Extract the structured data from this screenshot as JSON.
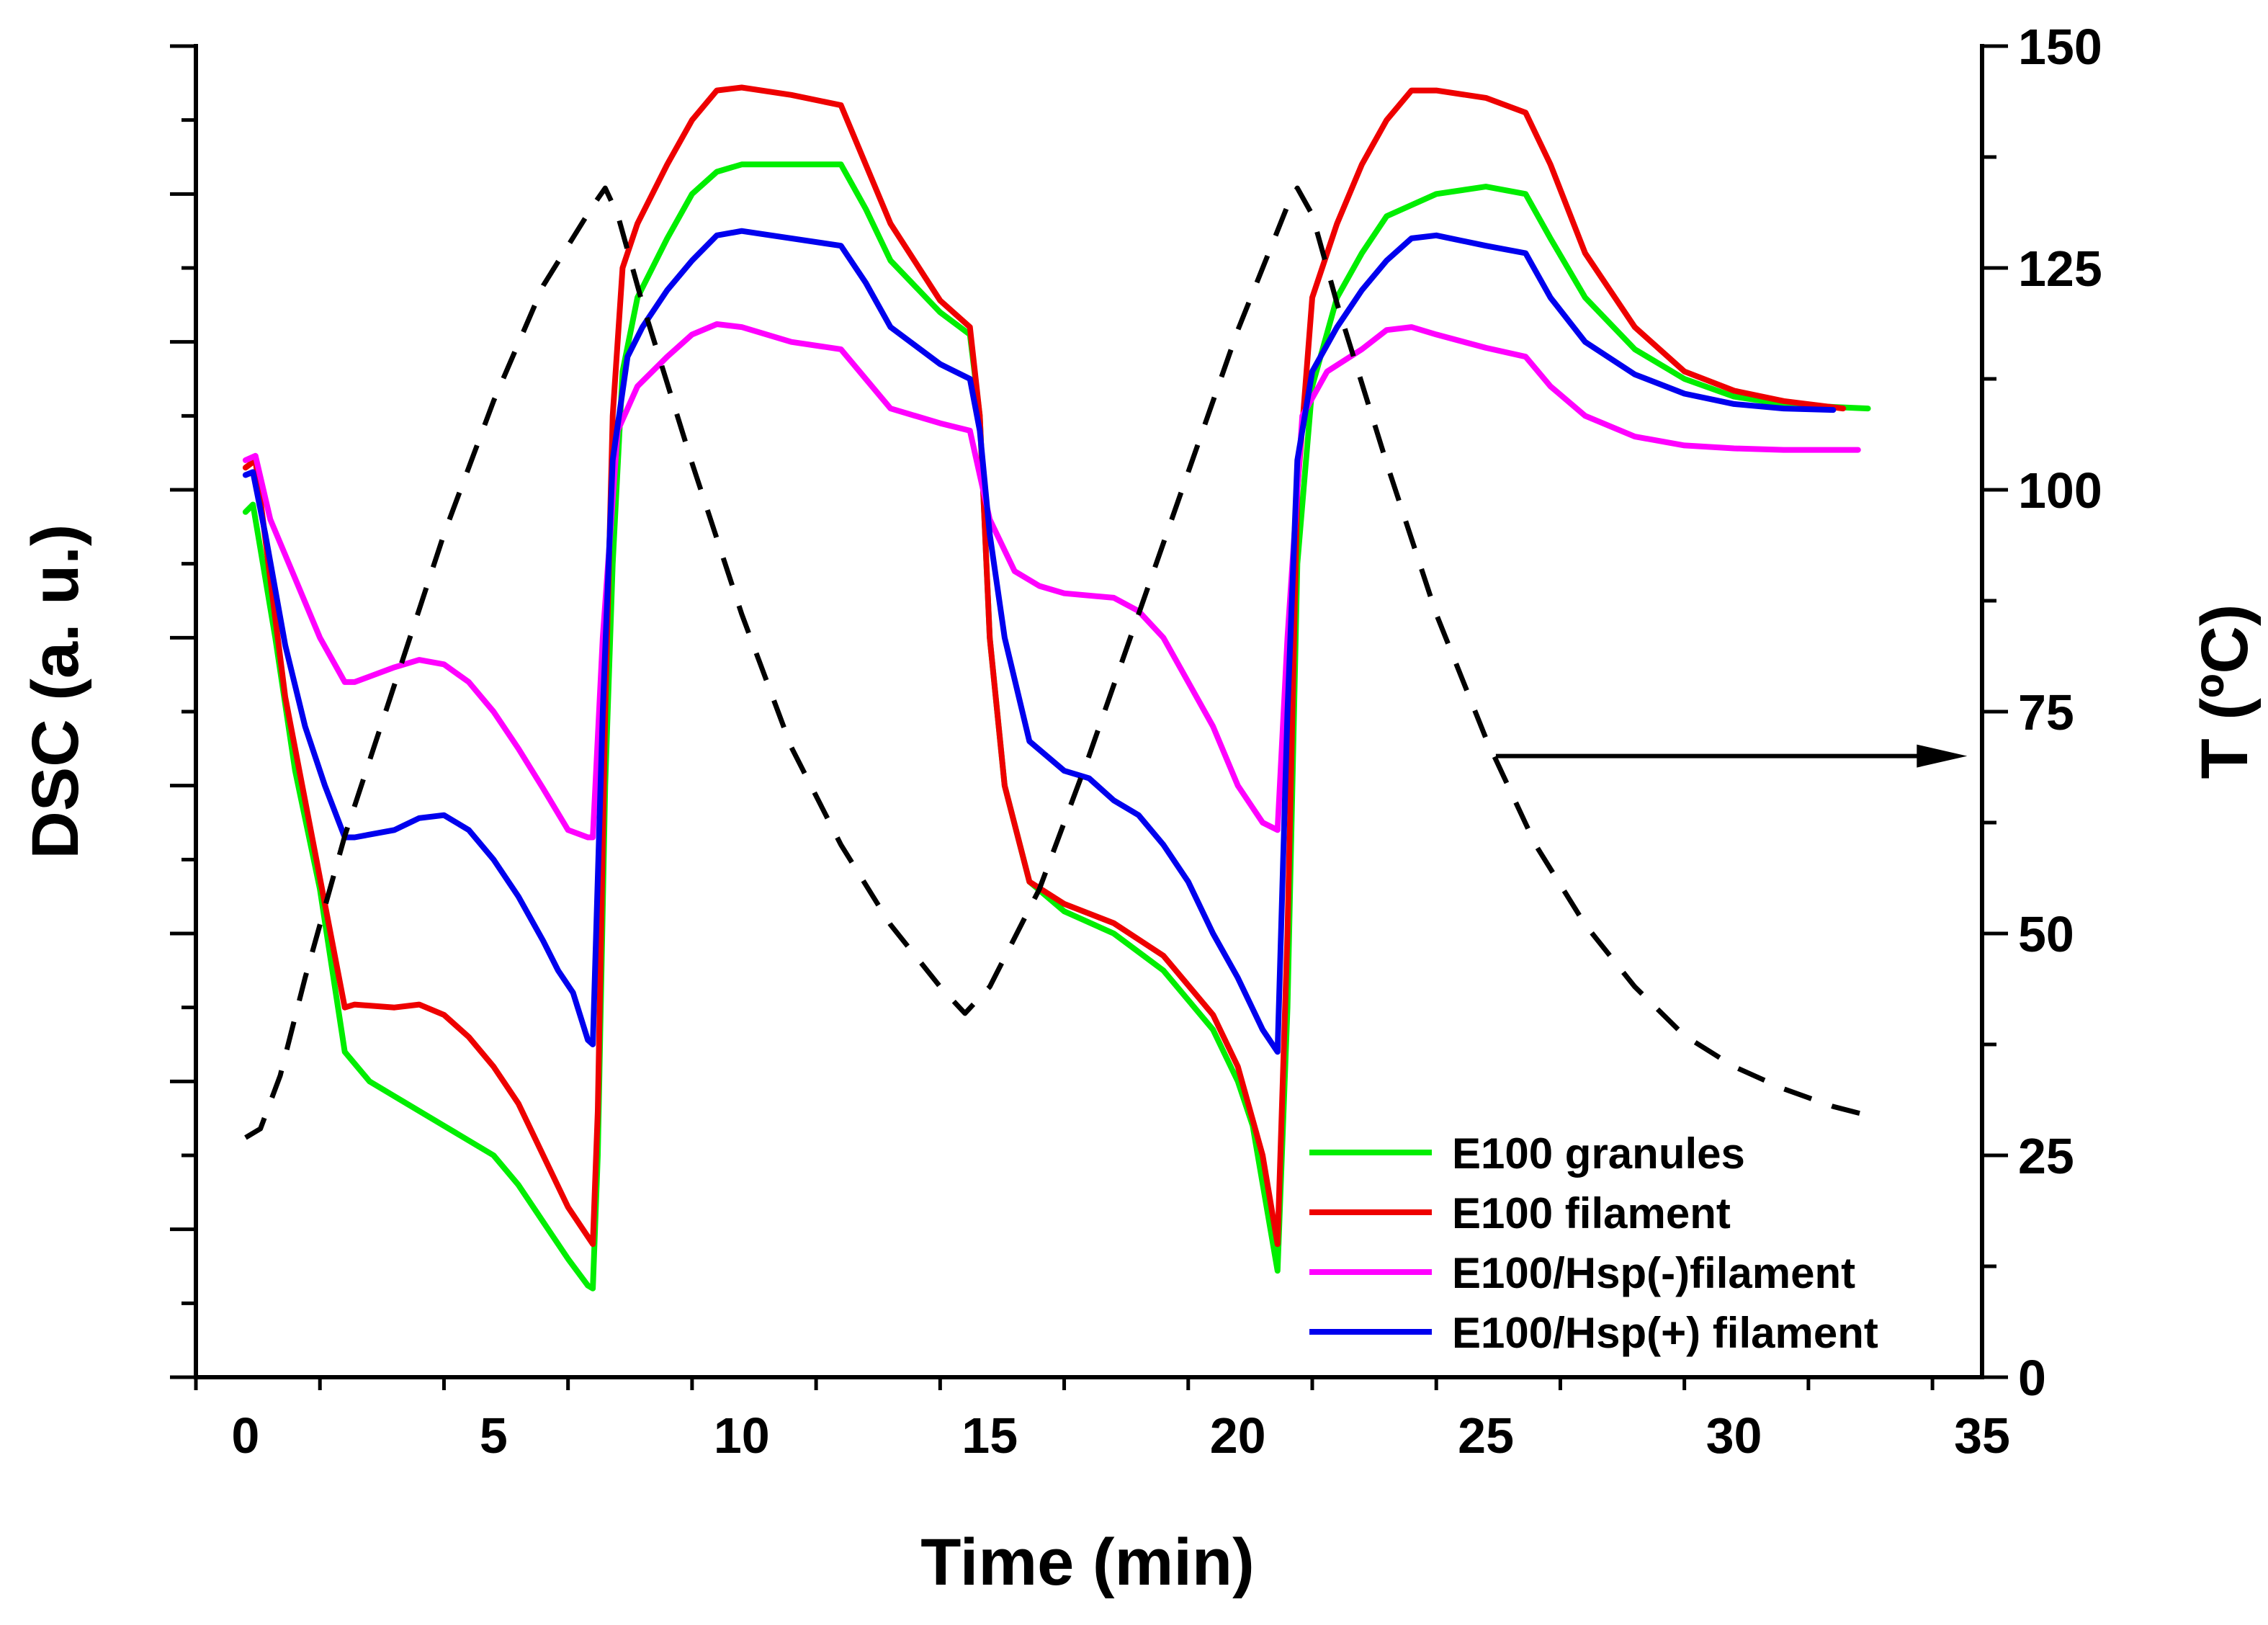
{
  "chart_data": {
    "type": "line",
    "xlabel": "Time (min)",
    "ylabel_left": "DSC (a. u.)",
    "ylabel_right": "T (ºC)",
    "xlim": [
      -1,
      35
    ],
    "x_ticks": [
      0,
      5,
      10,
      15,
      20,
      25,
      30,
      35
    ],
    "ylim_left": [
      0,
      9
    ],
    "ylim_right": [
      0,
      150
    ],
    "y_right_ticks": [
      0,
      25,
      50,
      75,
      100,
      125,
      150
    ],
    "grid": false,
    "legend_position": "bottom-right",
    "series": [
      {
        "name": "E100 granules",
        "color": "#00ee00",
        "axis": "left",
        "dash": "solid",
        "points": [
          [
            0,
            5.85
          ],
          [
            0.15,
            5.9
          ],
          [
            0.3,
            5.6
          ],
          [
            0.6,
            5.0
          ],
          [
            1.0,
            4.1
          ],
          [
            1.5,
            3.3
          ],
          [
            2.0,
            2.2
          ],
          [
            2.5,
            2.0
          ],
          [
            3.0,
            1.9
          ],
          [
            4.0,
            1.7
          ],
          [
            5.0,
            1.5
          ],
          [
            5.5,
            1.3
          ],
          [
            6.0,
            1.05
          ],
          [
            6.5,
            0.8
          ],
          [
            6.9,
            0.62
          ],
          [
            7.0,
            0.6
          ],
          [
            7.1,
            1.5
          ],
          [
            7.25,
            4.0
          ],
          [
            7.4,
            5.5
          ],
          [
            7.6,
            6.8
          ],
          [
            7.9,
            7.3
          ],
          [
            8.5,
            7.7
          ],
          [
            9.0,
            8.0
          ],
          [
            9.5,
            8.15
          ],
          [
            10.0,
            8.2
          ],
          [
            11.0,
            8.2
          ],
          [
            12.0,
            8.2
          ],
          [
            12.5,
            7.9
          ],
          [
            13.0,
            7.55
          ],
          [
            14.0,
            7.2
          ],
          [
            14.6,
            7.05
          ],
          [
            14.8,
            6.5
          ],
          [
            15.0,
            5.0
          ],
          [
            15.3,
            4.0
          ],
          [
            15.8,
            3.35
          ],
          [
            16.5,
            3.15
          ],
          [
            17.5,
            3.0
          ],
          [
            18.5,
            2.75
          ],
          [
            19.5,
            2.35
          ],
          [
            20.0,
            2.0
          ],
          [
            20.3,
            1.7
          ],
          [
            20.8,
            0.72
          ],
          [
            21.0,
            2.5
          ],
          [
            21.2,
            5.5
          ],
          [
            21.5,
            6.7
          ],
          [
            22.0,
            7.3
          ],
          [
            22.5,
            7.6
          ],
          [
            23.0,
            7.85
          ],
          [
            24.0,
            8.0
          ],
          [
            25.0,
            8.05
          ],
          [
            25.8,
            8.0
          ],
          [
            26.3,
            7.7
          ],
          [
            27.0,
            7.3
          ],
          [
            28.0,
            6.95
          ],
          [
            29.0,
            6.75
          ],
          [
            30.0,
            6.63
          ],
          [
            31.0,
            6.58
          ],
          [
            32.0,
            6.56
          ],
          [
            32.7,
            6.55
          ]
        ]
      },
      {
        "name": "E100 filament",
        "color": "#ee0000",
        "axis": "left",
        "dash": "solid",
        "points": [
          [
            0,
            6.15
          ],
          [
            0.2,
            6.2
          ],
          [
            0.5,
            5.4
          ],
          [
            0.8,
            4.6
          ],
          [
            1.2,
            3.9
          ],
          [
            1.6,
            3.2
          ],
          [
            2.0,
            2.5
          ],
          [
            2.2,
            2.52
          ],
          [
            3.0,
            2.5
          ],
          [
            3.5,
            2.52
          ],
          [
            4.0,
            2.45
          ],
          [
            4.5,
            2.3
          ],
          [
            5.0,
            2.1
          ],
          [
            5.5,
            1.85
          ],
          [
            6.0,
            1.5
          ],
          [
            6.5,
            1.15
          ],
          [
            6.9,
            0.95
          ],
          [
            7.0,
            0.9
          ],
          [
            7.1,
            1.8
          ],
          [
            7.25,
            4.5
          ],
          [
            7.4,
            6.5
          ],
          [
            7.6,
            7.5
          ],
          [
            7.9,
            7.8
          ],
          [
            8.5,
            8.2
          ],
          [
            9.0,
            8.5
          ],
          [
            9.5,
            8.7
          ],
          [
            10.0,
            8.72
          ],
          [
            11.0,
            8.67
          ],
          [
            12.0,
            8.6
          ],
          [
            12.5,
            8.2
          ],
          [
            13.0,
            7.8
          ],
          [
            14.0,
            7.28
          ],
          [
            14.6,
            7.1
          ],
          [
            14.8,
            6.5
          ],
          [
            15.0,
            5.0
          ],
          [
            15.3,
            4.0
          ],
          [
            15.8,
            3.35
          ],
          [
            16.5,
            3.2
          ],
          [
            17.5,
            3.07
          ],
          [
            18.5,
            2.85
          ],
          [
            19.5,
            2.45
          ],
          [
            20.0,
            2.1
          ],
          [
            20.5,
            1.5
          ],
          [
            20.8,
            0.9
          ],
          [
            21.0,
            3.0
          ],
          [
            21.2,
            6.0
          ],
          [
            21.5,
            7.3
          ],
          [
            22.0,
            7.8
          ],
          [
            22.5,
            8.2
          ],
          [
            23.0,
            8.5
          ],
          [
            23.5,
            8.7
          ],
          [
            24.0,
            8.7
          ],
          [
            25.0,
            8.65
          ],
          [
            25.8,
            8.55
          ],
          [
            26.3,
            8.2
          ],
          [
            27.0,
            7.6
          ],
          [
            28.0,
            7.1
          ],
          [
            29.0,
            6.8
          ],
          [
            30.0,
            6.67
          ],
          [
            31.0,
            6.6
          ],
          [
            32.2,
            6.55
          ]
        ]
      },
      {
        "name": "E100/Hsp(-)filament",
        "color": "#ff00ff",
        "axis": "left",
        "dash": "solid",
        "points": [
          [
            0,
            6.2
          ],
          [
            0.2,
            6.23
          ],
          [
            0.5,
            5.8
          ],
          [
            1.0,
            5.4
          ],
          [
            1.5,
            5.0
          ],
          [
            2.0,
            4.7
          ],
          [
            2.2,
            4.7
          ],
          [
            3.0,
            4.8
          ],
          [
            3.5,
            4.85
          ],
          [
            4.0,
            4.82
          ],
          [
            4.5,
            4.7
          ],
          [
            5.0,
            4.5
          ],
          [
            5.5,
            4.25
          ],
          [
            6.0,
            3.98
          ],
          [
            6.5,
            3.7
          ],
          [
            6.9,
            3.65
          ],
          [
            7.0,
            3.65
          ],
          [
            7.2,
            5.0
          ],
          [
            7.5,
            6.4
          ],
          [
            7.9,
            6.7
          ],
          [
            8.5,
            6.9
          ],
          [
            9.0,
            7.05
          ],
          [
            9.5,
            7.12
          ],
          [
            10.0,
            7.1
          ],
          [
            11.0,
            7.0
          ],
          [
            12.0,
            6.95
          ],
          [
            12.5,
            6.75
          ],
          [
            13.0,
            6.55
          ],
          [
            14.0,
            6.45
          ],
          [
            14.6,
            6.4
          ],
          [
            14.8,
            6.1
          ],
          [
            15.0,
            5.8
          ],
          [
            15.5,
            5.45
          ],
          [
            16.0,
            5.35
          ],
          [
            16.5,
            5.3
          ],
          [
            17.5,
            5.27
          ],
          [
            18.0,
            5.18
          ],
          [
            18.5,
            5.0
          ],
          [
            19.0,
            4.7
          ],
          [
            19.5,
            4.4
          ],
          [
            20.0,
            4.0
          ],
          [
            20.5,
            3.75
          ],
          [
            20.8,
            3.7
          ],
          [
            21.0,
            5.0
          ],
          [
            21.3,
            6.5
          ],
          [
            21.8,
            6.8
          ],
          [
            22.5,
            6.95
          ],
          [
            23.0,
            7.08
          ],
          [
            23.5,
            7.1
          ],
          [
            24.0,
            7.05
          ],
          [
            25.0,
            6.96
          ],
          [
            25.8,
            6.9
          ],
          [
            26.3,
            6.7
          ],
          [
            27.0,
            6.5
          ],
          [
            28.0,
            6.36
          ],
          [
            29.0,
            6.3
          ],
          [
            30.0,
            6.28
          ],
          [
            31.0,
            6.27
          ],
          [
            32.5,
            6.27
          ]
        ]
      },
      {
        "name": "E100/Hsp(+) filament",
        "color": "#0000ee",
        "axis": "left",
        "dash": "solid",
        "points": [
          [
            0,
            6.1
          ],
          [
            0.15,
            6.12
          ],
          [
            0.4,
            5.7
          ],
          [
            0.8,
            4.95
          ],
          [
            1.2,
            4.4
          ],
          [
            1.6,
            4.0
          ],
          [
            2.0,
            3.65
          ],
          [
            2.2,
            3.65
          ],
          [
            3.0,
            3.7
          ],
          [
            3.5,
            3.78
          ],
          [
            4.0,
            3.8
          ],
          [
            4.5,
            3.7
          ],
          [
            5.0,
            3.5
          ],
          [
            5.5,
            3.25
          ],
          [
            6.0,
            2.95
          ],
          [
            6.3,
            2.75
          ],
          [
            6.6,
            2.6
          ],
          [
            6.9,
            2.28
          ],
          [
            7.0,
            2.25
          ],
          [
            7.2,
            4.5
          ],
          [
            7.4,
            6.2
          ],
          [
            7.7,
            6.9
          ],
          [
            8.0,
            7.1
          ],
          [
            8.5,
            7.35
          ],
          [
            9.0,
            7.55
          ],
          [
            9.5,
            7.72
          ],
          [
            10.0,
            7.75
          ],
          [
            11.0,
            7.7
          ],
          [
            12.0,
            7.65
          ],
          [
            12.5,
            7.4
          ],
          [
            13.0,
            7.1
          ],
          [
            14.0,
            6.85
          ],
          [
            14.6,
            6.75
          ],
          [
            14.8,
            6.4
          ],
          [
            15.0,
            5.7
          ],
          [
            15.3,
            5.0
          ],
          [
            15.8,
            4.3
          ],
          [
            16.5,
            4.1
          ],
          [
            17.0,
            4.05
          ],
          [
            17.5,
            3.9
          ],
          [
            18.0,
            3.8
          ],
          [
            18.5,
            3.6
          ],
          [
            19.0,
            3.35
          ],
          [
            19.5,
            3.0
          ],
          [
            20.0,
            2.7
          ],
          [
            20.5,
            2.35
          ],
          [
            20.8,
            2.2
          ],
          [
            21.0,
            4.5
          ],
          [
            21.2,
            6.2
          ],
          [
            21.5,
            6.8
          ],
          [
            22.0,
            7.1
          ],
          [
            22.5,
            7.35
          ],
          [
            23.0,
            7.55
          ],
          [
            23.5,
            7.7
          ],
          [
            24.0,
            7.72
          ],
          [
            25.0,
            7.65
          ],
          [
            25.8,
            7.6
          ],
          [
            26.3,
            7.3
          ],
          [
            27.0,
            7.0
          ],
          [
            28.0,
            6.78
          ],
          [
            29.0,
            6.65
          ],
          [
            30.0,
            6.58
          ],
          [
            31.0,
            6.55
          ],
          [
            32.0,
            6.54
          ]
        ]
      },
      {
        "name": "",
        "color": "#000000",
        "axis": "right",
        "dash": "dashed",
        "points": [
          [
            0,
            27
          ],
          [
            0.3,
            28
          ],
          [
            0.7,
            34
          ],
          [
            1.2,
            45
          ],
          [
            2,
            61
          ],
          [
            3,
            78
          ],
          [
            4,
            95
          ],
          [
            5,
            110
          ],
          [
            6,
            123
          ],
          [
            7,
            132
          ],
          [
            7.25,
            134
          ],
          [
            7.5,
            131
          ],
          [
            8,
            121
          ],
          [
            9,
            103
          ],
          [
            10,
            86
          ],
          [
            11,
            71
          ],
          [
            12,
            60
          ],
          [
            13,
            51
          ],
          [
            14,
            44
          ],
          [
            14.5,
            41
          ],
          [
            15,
            44
          ],
          [
            16,
            55
          ],
          [
            17,
            70
          ],
          [
            18,
            86
          ],
          [
            19,
            102
          ],
          [
            20,
            118
          ],
          [
            21,
            132
          ],
          [
            21.2,
            134
          ],
          [
            21.5,
            131
          ],
          [
            22,
            121
          ],
          [
            23,
            103
          ],
          [
            24,
            86
          ],
          [
            25,
            72
          ],
          [
            26,
            60
          ],
          [
            27,
            51
          ],
          [
            28,
            44
          ],
          [
            29,
            38.5
          ],
          [
            30,
            35
          ],
          [
            31,
            32.5
          ],
          [
            32,
            30.5
          ],
          [
            32.7,
            29.5
          ]
        ]
      }
    ],
    "annotation": {
      "type": "arrow",
      "direction": "right",
      "from": [
        25.2,
        70
      ],
      "to": [
        34.7,
        70
      ],
      "axis": "right"
    }
  }
}
